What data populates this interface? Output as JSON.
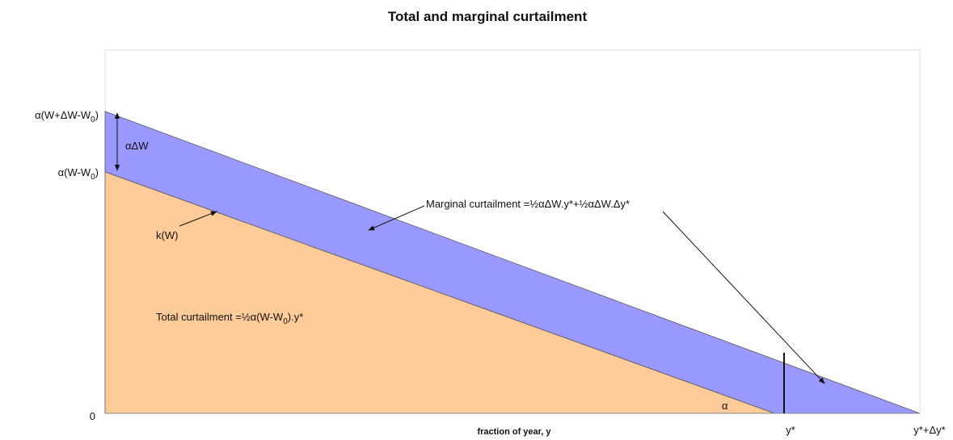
{
  "title": "Total and marginal curtailment",
  "x_axis_label": "fraction of year, y",
  "y_labels": {
    "upper": {
      "before": "α(W+ΔW-W",
      "sub": "0",
      "after": ")"
    },
    "lower": {
      "before": "α(W-W",
      "sub": "0",
      "after": ")"
    },
    "zero": "0"
  },
  "x_labels": {
    "y_star": "y*",
    "y_star_plus": "y*+Δy*"
  },
  "annotations": {
    "delta": "αΔW",
    "kw": "k(W)",
    "marginal": "Marginal curtailment =½αΔW.y*+½αΔW.Δy*",
    "total": {
      "before": "Total curtailment =½α(W-W",
      "sub": "0",
      "after": ").y*"
    },
    "alpha": "α"
  }
}
